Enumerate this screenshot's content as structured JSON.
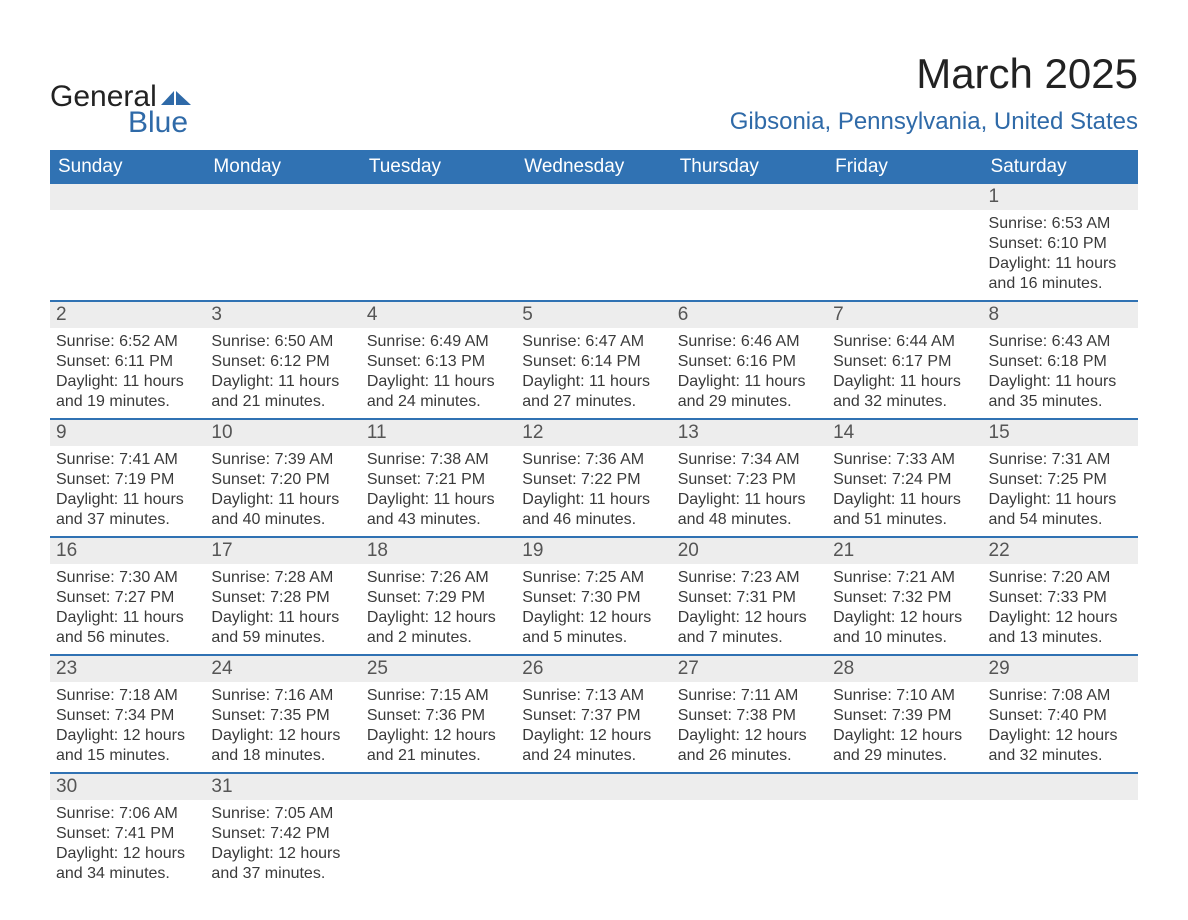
{
  "logo": {
    "general": "General",
    "blue": "Blue",
    "accent_color": "#2f6aa8"
  },
  "title": "March 2025",
  "location": "Gibsonia, Pennsylvania, United States",
  "colors": {
    "header_bg": "#3072b3",
    "header_text": "#ffffff",
    "daynum_bg": "#ededed",
    "row_divider": "#3072b3",
    "body_text": "#3a3a3a"
  },
  "day_headers": [
    "Sunday",
    "Monday",
    "Tuesday",
    "Wednesday",
    "Thursday",
    "Friday",
    "Saturday"
  ],
  "weeks": [
    [
      {
        "blank": true
      },
      {
        "blank": true
      },
      {
        "blank": true
      },
      {
        "blank": true
      },
      {
        "blank": true
      },
      {
        "blank": true
      },
      {
        "n": "1",
        "sr": "6:53 AM",
        "ss": "6:10 PM",
        "dl": "11 hours and 16 minutes."
      }
    ],
    [
      {
        "n": "2",
        "sr": "6:52 AM",
        "ss": "6:11 PM",
        "dl": "11 hours and 19 minutes."
      },
      {
        "n": "3",
        "sr": "6:50 AM",
        "ss": "6:12 PM",
        "dl": "11 hours and 21 minutes."
      },
      {
        "n": "4",
        "sr": "6:49 AM",
        "ss": "6:13 PM",
        "dl": "11 hours and 24 minutes."
      },
      {
        "n": "5",
        "sr": "6:47 AM",
        "ss": "6:14 PM",
        "dl": "11 hours and 27 minutes."
      },
      {
        "n": "6",
        "sr": "6:46 AM",
        "ss": "6:16 PM",
        "dl": "11 hours and 29 minutes."
      },
      {
        "n": "7",
        "sr": "6:44 AM",
        "ss": "6:17 PM",
        "dl": "11 hours and 32 minutes."
      },
      {
        "n": "8",
        "sr": "6:43 AM",
        "ss": "6:18 PM",
        "dl": "11 hours and 35 minutes."
      }
    ],
    [
      {
        "n": "9",
        "sr": "7:41 AM",
        "ss": "7:19 PM",
        "dl": "11 hours and 37 minutes."
      },
      {
        "n": "10",
        "sr": "7:39 AM",
        "ss": "7:20 PM",
        "dl": "11 hours and 40 minutes."
      },
      {
        "n": "11",
        "sr": "7:38 AM",
        "ss": "7:21 PM",
        "dl": "11 hours and 43 minutes."
      },
      {
        "n": "12",
        "sr": "7:36 AM",
        "ss": "7:22 PM",
        "dl": "11 hours and 46 minutes."
      },
      {
        "n": "13",
        "sr": "7:34 AM",
        "ss": "7:23 PM",
        "dl": "11 hours and 48 minutes."
      },
      {
        "n": "14",
        "sr": "7:33 AM",
        "ss": "7:24 PM",
        "dl": "11 hours and 51 minutes."
      },
      {
        "n": "15",
        "sr": "7:31 AM",
        "ss": "7:25 PM",
        "dl": "11 hours and 54 minutes."
      }
    ],
    [
      {
        "n": "16",
        "sr": "7:30 AM",
        "ss": "7:27 PM",
        "dl": "11 hours and 56 minutes."
      },
      {
        "n": "17",
        "sr": "7:28 AM",
        "ss": "7:28 PM",
        "dl": "11 hours and 59 minutes."
      },
      {
        "n": "18",
        "sr": "7:26 AM",
        "ss": "7:29 PM",
        "dl": "12 hours and 2 minutes."
      },
      {
        "n": "19",
        "sr": "7:25 AM",
        "ss": "7:30 PM",
        "dl": "12 hours and 5 minutes."
      },
      {
        "n": "20",
        "sr": "7:23 AM",
        "ss": "7:31 PM",
        "dl": "12 hours and 7 minutes."
      },
      {
        "n": "21",
        "sr": "7:21 AM",
        "ss": "7:32 PM",
        "dl": "12 hours and 10 minutes."
      },
      {
        "n": "22",
        "sr": "7:20 AM",
        "ss": "7:33 PM",
        "dl": "12 hours and 13 minutes."
      }
    ],
    [
      {
        "n": "23",
        "sr": "7:18 AM",
        "ss": "7:34 PM",
        "dl": "12 hours and 15 minutes."
      },
      {
        "n": "24",
        "sr": "7:16 AM",
        "ss": "7:35 PM",
        "dl": "12 hours and 18 minutes."
      },
      {
        "n": "25",
        "sr": "7:15 AM",
        "ss": "7:36 PM",
        "dl": "12 hours and 21 minutes."
      },
      {
        "n": "26",
        "sr": "7:13 AM",
        "ss": "7:37 PM",
        "dl": "12 hours and 24 minutes."
      },
      {
        "n": "27",
        "sr": "7:11 AM",
        "ss": "7:38 PM",
        "dl": "12 hours and 26 minutes."
      },
      {
        "n": "28",
        "sr": "7:10 AM",
        "ss": "7:39 PM",
        "dl": "12 hours and 29 minutes."
      },
      {
        "n": "29",
        "sr": "7:08 AM",
        "ss": "7:40 PM",
        "dl": "12 hours and 32 minutes."
      }
    ],
    [
      {
        "n": "30",
        "sr": "7:06 AM",
        "ss": "7:41 PM",
        "dl": "12 hours and 34 minutes."
      },
      {
        "n": "31",
        "sr": "7:05 AM",
        "ss": "7:42 PM",
        "dl": "12 hours and 37 minutes."
      },
      {
        "blank": true
      },
      {
        "blank": true
      },
      {
        "blank": true
      },
      {
        "blank": true
      },
      {
        "blank": true
      }
    ]
  ],
  "labels": {
    "sunrise": "Sunrise: ",
    "sunset": "Sunset: ",
    "daylight": "Daylight: "
  }
}
